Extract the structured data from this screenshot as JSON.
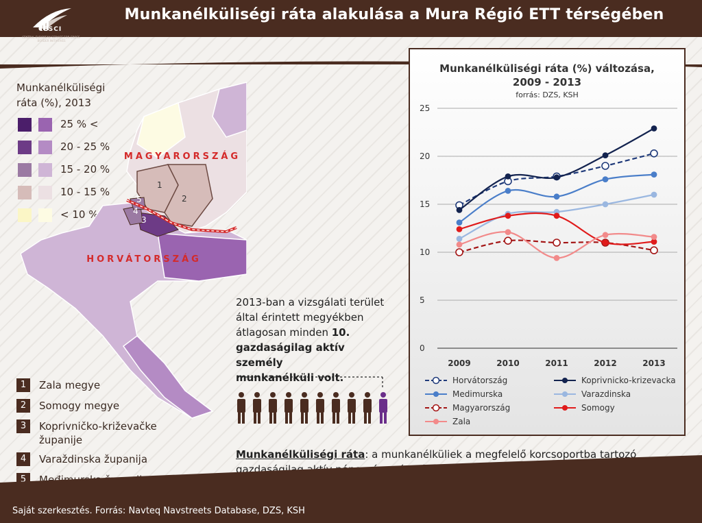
{
  "header": {
    "title": "Munkanélküliségi ráta alakulása a Mura Régió ETT térségében"
  },
  "logo": {
    "name": "CESCI",
    "subtitle": "CENTRAL EUROPEAN SERVICE FOR CROSS-BORDER INITIATIVES"
  },
  "map": {
    "legend_title_line1": "Munkanélküliségi",
    "legend_title_line2": "ráta (%), 2013",
    "classes": [
      {
        "label": "25 % <",
        "hu_color": "#4b1e6a",
        "hr_color": "#9a64b0"
      },
      {
        "label": "20 - 25 %",
        "hu_color": "#6d3b86",
        "hr_color": "#b48bc4"
      },
      {
        "label": "15 - 20 %",
        "hu_color": "#9b7aa3",
        "hr_color": "#cfb5d6"
      },
      {
        "label": "10 - 15 %",
        "hu_color": "#d6bcb9",
        "hr_color": "#ece0e3"
      },
      {
        "label": "< 10 %",
        "hu_color": "#fbf6c6",
        "hr_color": "#fdfbe3"
      }
    ],
    "country_hu": "MAGYARORSZÁG",
    "country_hr": "HORVÁTORSZÁG",
    "region_labels": [
      "1",
      "2",
      "3",
      "4",
      "5"
    ],
    "regions": [
      {
        "num": "1",
        "name": "Zala megye"
      },
      {
        "num": "2",
        "name": "Somogy megye"
      },
      {
        "num": "3",
        "name": "Koprivničko-križevačke županije"
      },
      {
        "num": "4",
        "name": "Varaždinska županija"
      },
      {
        "num": "5",
        "name": "Međimurska županija"
      }
    ]
  },
  "info": {
    "line1": "2013-ban a vizsgálati terület",
    "line2": "által érintett megyékben",
    "line3": "átlagosan minden",
    "highlight": "10.",
    "line4": "gazdaságilag aktív személy",
    "line5": "munkanélküli volt."
  },
  "definition": {
    "term": "Munkanélküliségi ráta",
    "text": ": a munkanélküliek a megfelelő korcsoportba tartozó gazdaságilag aktív népesség százalékában."
  },
  "footer": {
    "text": "Saját szerkesztés. Forrás: Navteq Navstreets Database, DZS, KSH"
  },
  "chart_data": {
    "type": "line",
    "title_line1": "Munkanélküliségi ráta (%) változása,",
    "title_line2": "2009 - 2013",
    "source": "forrás: DZS, KSH",
    "categories": [
      "2009",
      "2010",
      "2011",
      "2012",
      "2013"
    ],
    "ylim": [
      0,
      25
    ],
    "yticks": [
      "0",
      "5",
      "10",
      "15",
      "20",
      "25"
    ],
    "grid": true,
    "legend_position": "bottom",
    "series": [
      {
        "name": "Horvátország",
        "values": [
          14.9,
          17.4,
          17.9,
          19.0,
          20.3
        ],
        "color": "#1f3a7a",
        "dashed": true,
        "marker": "open"
      },
      {
        "name": "Koprivnicko-krizevacka",
        "values": [
          14.4,
          17.9,
          17.8,
          20.1,
          22.9
        ],
        "color": "#13234f",
        "dashed": false,
        "marker": "filled"
      },
      {
        "name": "Medimurska",
        "values": [
          13.1,
          16.4,
          15.8,
          17.6,
          18.1
        ],
        "color": "#4a7ec9",
        "dashed": false,
        "marker": "filled"
      },
      {
        "name": "Varazdinska",
        "values": [
          11.4,
          14.0,
          14.2,
          15.0,
          16.0
        ],
        "color": "#9ab7e0",
        "dashed": false,
        "marker": "filled"
      },
      {
        "name": "Magyarország",
        "values": [
          10.0,
          11.2,
          11.0,
          11.0,
          10.2
        ],
        "color": "#a31414",
        "dashed": true,
        "marker": "open"
      },
      {
        "name": "Somogy",
        "values": [
          12.4,
          13.8,
          13.8,
          11.0,
          11.1
        ],
        "color": "#e01b1b",
        "dashed": false,
        "marker": "filled"
      },
      {
        "name": "Zala",
        "values": [
          10.8,
          12.1,
          9.4,
          11.8,
          11.6
        ],
        "color": "#f28a8a",
        "dashed": false,
        "marker": "filled"
      }
    ]
  }
}
